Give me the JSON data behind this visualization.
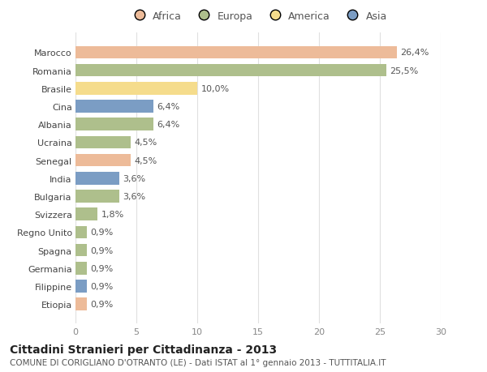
{
  "countries": [
    "Marocco",
    "Romania",
    "Brasile",
    "Cina",
    "Albania",
    "Ucraina",
    "Senegal",
    "India",
    "Bulgaria",
    "Svizzera",
    "Regno Unito",
    "Spagna",
    "Germania",
    "Filippine",
    "Etiopia"
  ],
  "values": [
    26.4,
    25.5,
    10.0,
    6.4,
    6.4,
    4.5,
    4.5,
    3.6,
    3.6,
    1.8,
    0.9,
    0.9,
    0.9,
    0.9,
    0.9
  ],
  "labels": [
    "26,4%",
    "25,5%",
    "10,0%",
    "6,4%",
    "6,4%",
    "4,5%",
    "4,5%",
    "3,6%",
    "3,6%",
    "1,8%",
    "0,9%",
    "0,9%",
    "0,9%",
    "0,9%",
    "0,9%"
  ],
  "colors": [
    "#EDBB99",
    "#AEBF8C",
    "#F5DC8C",
    "#7B9DC4",
    "#AEBF8C",
    "#AEBF8C",
    "#EDBB99",
    "#7B9DC4",
    "#AEBF8C",
    "#AEBF8C",
    "#AEBF8C",
    "#AEBF8C",
    "#AEBF8C",
    "#7B9DC4",
    "#EDBB99"
  ],
  "continents": [
    "Africa",
    "Europa",
    "America",
    "Asia"
  ],
  "legend_colors": [
    "#EDBB99",
    "#AEBF8C",
    "#F5DC8C",
    "#7B9DC4"
  ],
  "title": "Cittadini Stranieri per Cittadinanza - 2013",
  "subtitle": "COMUNE DI CORIGLIANO D'OTRANTO (LE) - Dati ISTAT al 1° gennaio 2013 - TUTTITALIA.IT",
  "xlim": [
    0,
    30
  ],
  "xticks": [
    0,
    5,
    10,
    15,
    20,
    25,
    30
  ],
  "background_color": "#ffffff",
  "grid_color": "#e0e0e0",
  "bar_height": 0.7,
  "title_fontsize": 10,
  "subtitle_fontsize": 7.5,
  "tick_fontsize": 8,
  "label_fontsize": 8
}
